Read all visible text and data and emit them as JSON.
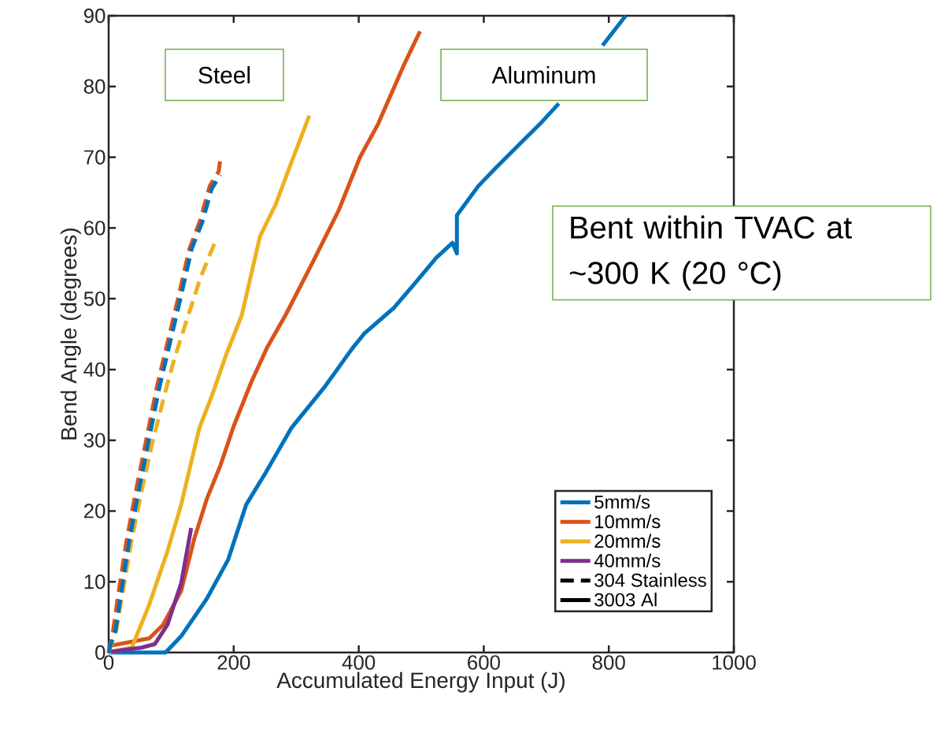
{
  "chart_data": {
    "type": "line",
    "xlabel": "Accumulated Energy Input (J)",
    "ylabel": "Bend Angle (degrees)",
    "xlim": [
      0,
      1000
    ],
    "ylim": [
      0,
      90
    ],
    "xticks": [
      0,
      200,
      400,
      600,
      800,
      1000
    ],
    "yticks": [
      0,
      10,
      20,
      30,
      40,
      50,
      60,
      70,
      80,
      90
    ],
    "grid": false,
    "legend": "bottom right",
    "marker": "none",
    "line_style": "solid",
    "annotations": [
      "Steel",
      "Aluminum",
      "Bent within TVAC at ~300 K (20 °C)"
    ],
    "series": [
      {
        "name": "5mm/s",
        "color": "#0072bd",
        "x": [
          0,
          78,
          91,
          116,
          157,
          191,
          220,
          251,
          292,
          326,
          346,
          389,
          409,
          443,
          456,
          490,
          524,
          550,
          557,
          557,
          591,
          618,
          659,
          693,
          720,
          755,
          790,
          827
        ],
        "values": [
          0,
          0,
          0,
          2.3,
          7.6,
          13.1,
          20.9,
          25.4,
          31.7,
          35.4,
          37.6,
          42.9,
          45.1,
          47.7,
          48.7,
          52.2,
          55.8,
          57.9,
          56.4,
          61.8,
          65.9,
          68.4,
          72,
          75,
          77.6,
          null,
          85.8,
          90
        ]
      },
      {
        "name": "10mm/s",
        "color": "#d95319",
        "x": [
          0,
          65,
          87,
          116,
          137,
          157,
          179,
          200,
          229,
          254,
          283,
          326,
          368,
          402,
          431,
          472,
          498
        ],
        "values": [
          0.9,
          2,
          3.9,
          8.7,
          16.1,
          21.7,
          26.5,
          32,
          38.4,
          43.2,
          47.7,
          55.1,
          62.5,
          70,
          74.7,
          83,
          87.8
        ]
      },
      {
        "name": "20mm/s",
        "color": "#edb120",
        "x": [
          0,
          37,
          65,
          94,
          116,
          128,
          145,
          166,
          188,
          213,
          242,
          267,
          292,
          321
        ],
        "values": [
          0,
          0.7,
          6.8,
          14.3,
          20.9,
          25.4,
          31.7,
          36.5,
          42.1,
          47.7,
          58.8,
          63.3,
          69.2,
          75.9
        ]
      },
      {
        "name": "40mm/s",
        "color": "#7e2f8e",
        "x": [
          3,
          53,
          74,
          94,
          116,
          132
        ],
        "values": [
          0.1,
          0.7,
          1.2,
          3.9,
          9.8,
          17.6
        ]
      },
      {
        "name": "304 Stainless",
        "color": "#000000",
        "line_style": "dashed"
      },
      {
        "name": "3003 Al",
        "color": "#000000",
        "line_style": "solid"
      },
      {
        "color": "#d95319",
        "line_style": "dashed",
        "x": [
          0,
          7,
          15,
          29,
          44,
          60,
          77,
          92,
          111,
          129,
          146,
          162,
          176,
          179
        ],
        "values": [
          0,
          3,
          8,
          16,
          23,
          30,
          37.5,
          43,
          50,
          57,
          61,
          66,
          68,
          70
        ]
      },
      {
        "color": "#edb120",
        "line_style": "dashed",
        "x": [
          0,
          12,
          21,
          36,
          52,
          69,
          88,
          105,
          125,
          147,
          170
        ],
        "values": [
          0,
          3,
          7.8,
          15.5,
          22.5,
          29.3,
          36,
          41.5,
          47,
          53,
          58
        ]
      },
      {
        "color": "#0072bd",
        "line_style": "dashed",
        "x": [
          0,
          6,
          11,
          19,
          33,
          48,
          64,
          81,
          96,
          115,
          133,
          150,
          165,
          179
        ],
        "values": [
          0,
          2,
          3.1,
          7.8,
          15.8,
          22.8,
          29.9,
          37.4,
          43,
          50.1,
          57.1,
          60.9,
          65.6,
          67.5
        ]
      }
    ]
  }
}
